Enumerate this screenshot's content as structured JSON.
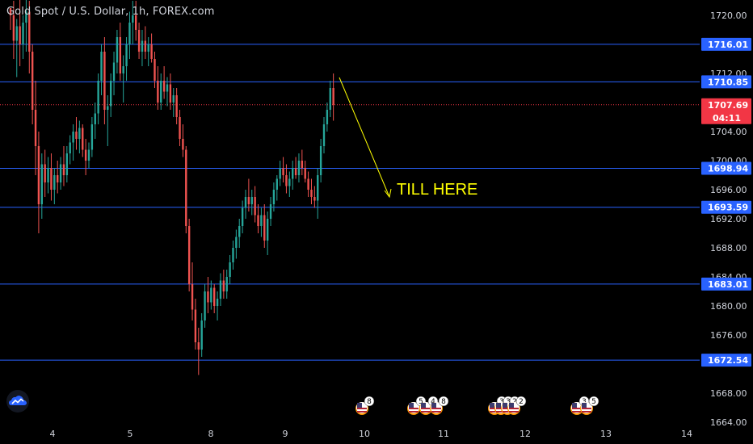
{
  "header": {
    "title": "Gold Spot / U.S. Dollar, 1h, FOREX.com"
  },
  "colors": {
    "background": "#000000",
    "up_candle": "#26a69a",
    "down_candle": "#ef5350",
    "level_line": "#2962ff",
    "current_price": "#f23645",
    "annotation": "#ffff00",
    "axis_text": "#d1d4dc"
  },
  "icons": {
    "logo": "tradingview-cloud-icon",
    "event": "us-flag-icon"
  },
  "chart_data": {
    "type": "candlestick",
    "title": "Gold Spot / U.S. Dollar, 1h, FOREX.com",
    "ylim": [
      1663,
      1722.5
    ],
    "y_ticks": [
      "1720.00",
      "1712.00",
      "1704.00",
      "1700.00",
      "1696.00",
      "1692.00",
      "1688.00",
      "1684.00",
      "1680.00",
      "1676.00",
      "1668.00",
      "1664.00"
    ],
    "x_ticks": [
      "4",
      "5",
      "8",
      "9",
      "10",
      "11",
      "12",
      "13",
      "14"
    ],
    "levels": [
      1716.01,
      1710.85,
      1698.94,
      1693.59,
      1683.01,
      1672.54
    ],
    "level_labels": [
      "1716.01",
      "1710.85",
      "1698.94",
      "1693.59",
      "1683.01",
      "1672.54"
    ],
    "current_price": {
      "value": 1707.69,
      "label": "1707.69",
      "countdown": "04:11"
    },
    "annotation": {
      "text": "TILL HERE"
    },
    "events": [
      {
        "day": "10",
        "count": "8"
      },
      {
        "day": "11",
        "count": "5"
      },
      {
        "day": "11",
        "count": "4"
      },
      {
        "day": "11",
        "count": "8"
      },
      {
        "day": "12",
        "count": "3"
      },
      {
        "day": "12",
        "count": "3"
      },
      {
        "day": "12",
        "count": "2"
      },
      {
        "day": "12",
        "count": "2"
      },
      {
        "day": "13",
        "count": "3"
      },
      {
        "day": "13",
        "count": "5"
      }
    ],
    "candles": [
      [
        1721.0,
        1721.0,
        1718.0,
        1720.0
      ],
      [
        1720.0,
        1722.0,
        1714.0,
        1716.5
      ],
      [
        1716.5,
        1719.5,
        1711.5,
        1718.5
      ],
      [
        1718.5,
        1722.5,
        1713.0,
        1716.0
      ],
      [
        1716.0,
        1720.0,
        1714.0,
        1719.0
      ],
      [
        1719.0,
        1722.5,
        1715.0,
        1720.5
      ],
      [
        1720.5,
        1722.0,
        1712.0,
        1715.0
      ],
      [
        1715.0,
        1716.0,
        1705.0,
        1707.0
      ],
      [
        1707.0,
        1711.0,
        1698.0,
        1702.0
      ],
      [
        1702.0,
        1704.0,
        1690.0,
        1694.0
      ],
      [
        1694.0,
        1701.0,
        1692.0,
        1699.5
      ],
      [
        1699.5,
        1701.5,
        1695.0,
        1697.0
      ],
      [
        1697.0,
        1700.5,
        1695.5,
        1699.0
      ],
      [
        1699.0,
        1701.0,
        1694.5,
        1696.0
      ],
      [
        1696.0,
        1699.0,
        1694.0,
        1698.0
      ],
      [
        1698.0,
        1700.0,
        1695.5,
        1697.0
      ],
      [
        1697.0,
        1700.5,
        1696.0,
        1699.5
      ],
      [
        1699.5,
        1702.0,
        1696.5,
        1698.0
      ],
      [
        1698.0,
        1702.0,
        1697.0,
        1701.0
      ],
      [
        1701.0,
        1703.5,
        1699.5,
        1702.5
      ],
      [
        1702.5,
        1705.0,
        1700.0,
        1704.0
      ],
      [
        1704.0,
        1706.0,
        1701.5,
        1703.0
      ],
      [
        1703.0,
        1705.5,
        1701.0,
        1704.5
      ],
      [
        1704.5,
        1705.0,
        1700.5,
        1701.5
      ],
      [
        1701.5,
        1703.0,
        1698.0,
        1700.0
      ],
      [
        1700.0,
        1702.5,
        1699.0,
        1701.5
      ],
      [
        1701.5,
        1706.0,
        1700.5,
        1705.0
      ],
      [
        1705.0,
        1708.0,
        1703.0,
        1706.5
      ],
      [
        1706.5,
        1712.0,
        1705.0,
        1711.0
      ],
      [
        1711.0,
        1716.0,
        1709.0,
        1715.0
      ],
      [
        1715.0,
        1717.0,
        1705.0,
        1707.0
      ],
      [
        1707.0,
        1709.0,
        1702.0,
        1707.5
      ],
      [
        1707.5,
        1712.0,
        1706.0,
        1711.0
      ],
      [
        1711.0,
        1715.0,
        1709.0,
        1713.5
      ],
      [
        1713.5,
        1718.0,
        1712.0,
        1717.0
      ],
      [
        1717.0,
        1719.0,
        1711.0,
        1712.0
      ],
      [
        1712.0,
        1714.5,
        1708.0,
        1713.0
      ],
      [
        1713.0,
        1717.0,
        1711.0,
        1716.0
      ],
      [
        1716.0,
        1720.5,
        1714.0,
        1719.0
      ],
      [
        1719.0,
        1722.0,
        1716.0,
        1720.0
      ],
      [
        1720.0,
        1722.0,
        1716.5,
        1718.0
      ],
      [
        1718.0,
        1719.0,
        1714.0,
        1715.0
      ],
      [
        1715.0,
        1718.0,
        1713.0,
        1716.5
      ],
      [
        1716.5,
        1718.5,
        1714.0,
        1715.0
      ],
      [
        1715.0,
        1717.0,
        1713.0,
        1716.0
      ],
      [
        1716.0,
        1717.5,
        1713.5,
        1714.0
      ],
      [
        1714.0,
        1715.0,
        1710.0,
        1711.0
      ],
      [
        1711.0,
        1713.0,
        1707.0,
        1708.0
      ],
      [
        1708.0,
        1712.0,
        1707.0,
        1711.0
      ],
      [
        1711.0,
        1713.0,
        1708.5,
        1709.5
      ],
      [
        1709.5,
        1711.5,
        1707.5,
        1710.5
      ],
      [
        1710.5,
        1712.0,
        1707.0,
        1708.0
      ],
      [
        1708.0,
        1710.0,
        1706.0,
        1709.0
      ],
      [
        1709.0,
        1710.0,
        1705.0,
        1706.0
      ],
      [
        1706.0,
        1707.0,
        1702.0,
        1703.0
      ],
      [
        1703.0,
        1705.0,
        1700.5,
        1701.5
      ],
      [
        1701.5,
        1702.0,
        1690.0,
        1691.0
      ],
      [
        1691.0,
        1692.0,
        1682.0,
        1683.0
      ],
      [
        1683.0,
        1686.0,
        1678.0,
        1679.5
      ],
      [
        1679.5,
        1681.0,
        1674.0,
        1675.0
      ],
      [
        1675.0,
        1677.0,
        1670.5,
        1674.0
      ],
      [
        1674.0,
        1679.0,
        1673.0,
        1678.0
      ],
      [
        1678.0,
        1683.0,
        1677.0,
        1682.0
      ],
      [
        1682.0,
        1684.0,
        1679.0,
        1680.5
      ],
      [
        1680.5,
        1683.5,
        1679.5,
        1682.5
      ],
      [
        1682.5,
        1683.0,
        1679.0,
        1680.0
      ],
      [
        1680.0,
        1682.0,
        1678.0,
        1681.0
      ],
      [
        1681.0,
        1684.5,
        1680.0,
        1683.5
      ],
      [
        1683.5,
        1685.0,
        1681.0,
        1682.0
      ],
      [
        1682.0,
        1685.0,
        1681.0,
        1684.0
      ],
      [
        1684.0,
        1687.0,
        1683.0,
        1686.0
      ],
      [
        1686.0,
        1689.0,
        1685.0,
        1688.0
      ],
      [
        1688.0,
        1690.5,
        1686.5,
        1689.5
      ],
      [
        1689.5,
        1692.0,
        1688.0,
        1691.0
      ],
      [
        1691.0,
        1694.5,
        1690.0,
        1693.5
      ],
      [
        1693.5,
        1696.0,
        1692.0,
        1695.0
      ],
      [
        1695.0,
        1697.5,
        1693.0,
        1694.0
      ],
      [
        1694.0,
        1696.0,
        1692.5,
        1695.0
      ],
      [
        1695.0,
        1696.5,
        1691.5,
        1692.5
      ],
      [
        1692.5,
        1694.0,
        1690.0,
        1691.0
      ],
      [
        1691.0,
        1693.5,
        1689.5,
        1692.5
      ],
      [
        1692.5,
        1694.0,
        1688.0,
        1689.0
      ],
      [
        1689.0,
        1693.0,
        1687.0,
        1692.0
      ],
      [
        1692.0,
        1695.0,
        1691.0,
        1694.0
      ],
      [
        1694.0,
        1697.0,
        1693.0,
        1696.0
      ],
      [
        1696.0,
        1698.0,
        1694.5,
        1697.5
      ],
      [
        1697.5,
        1700.0,
        1696.5,
        1699.0
      ],
      [
        1699.0,
        1700.5,
        1697.0,
        1698.0
      ],
      [
        1698.0,
        1699.5,
        1695.5,
        1696.5
      ],
      [
        1696.5,
        1698.5,
        1695.0,
        1697.5
      ],
      [
        1697.5,
        1700.0,
        1696.0,
        1699.0
      ],
      [
        1699.0,
        1700.5,
        1697.5,
        1698.0
      ],
      [
        1698.0,
        1701.0,
        1697.0,
        1700.0
      ],
      [
        1700.0,
        1701.5,
        1698.0,
        1699.0
      ],
      [
        1699.0,
        1700.0,
        1697.0,
        1697.5
      ],
      [
        1697.5,
        1698.5,
        1695.0,
        1696.0
      ],
      [
        1696.0,
        1697.5,
        1694.0,
        1695.0
      ],
      [
        1695.0,
        1696.5,
        1693.5,
        1694.5
      ],
      [
        1694.5,
        1699.0,
        1692.0,
        1698.0
      ],
      [
        1698.0,
        1703.0,
        1697.0,
        1702.0
      ],
      [
        1702.0,
        1706.0,
        1701.0,
        1705.0
      ],
      [
        1705.0,
        1708.0,
        1704.0,
        1707.0
      ],
      [
        1707.0,
        1711.0,
        1706.0,
        1710.0
      ],
      [
        1710.0,
        1712.0,
        1705.5,
        1707.7
      ]
    ]
  }
}
